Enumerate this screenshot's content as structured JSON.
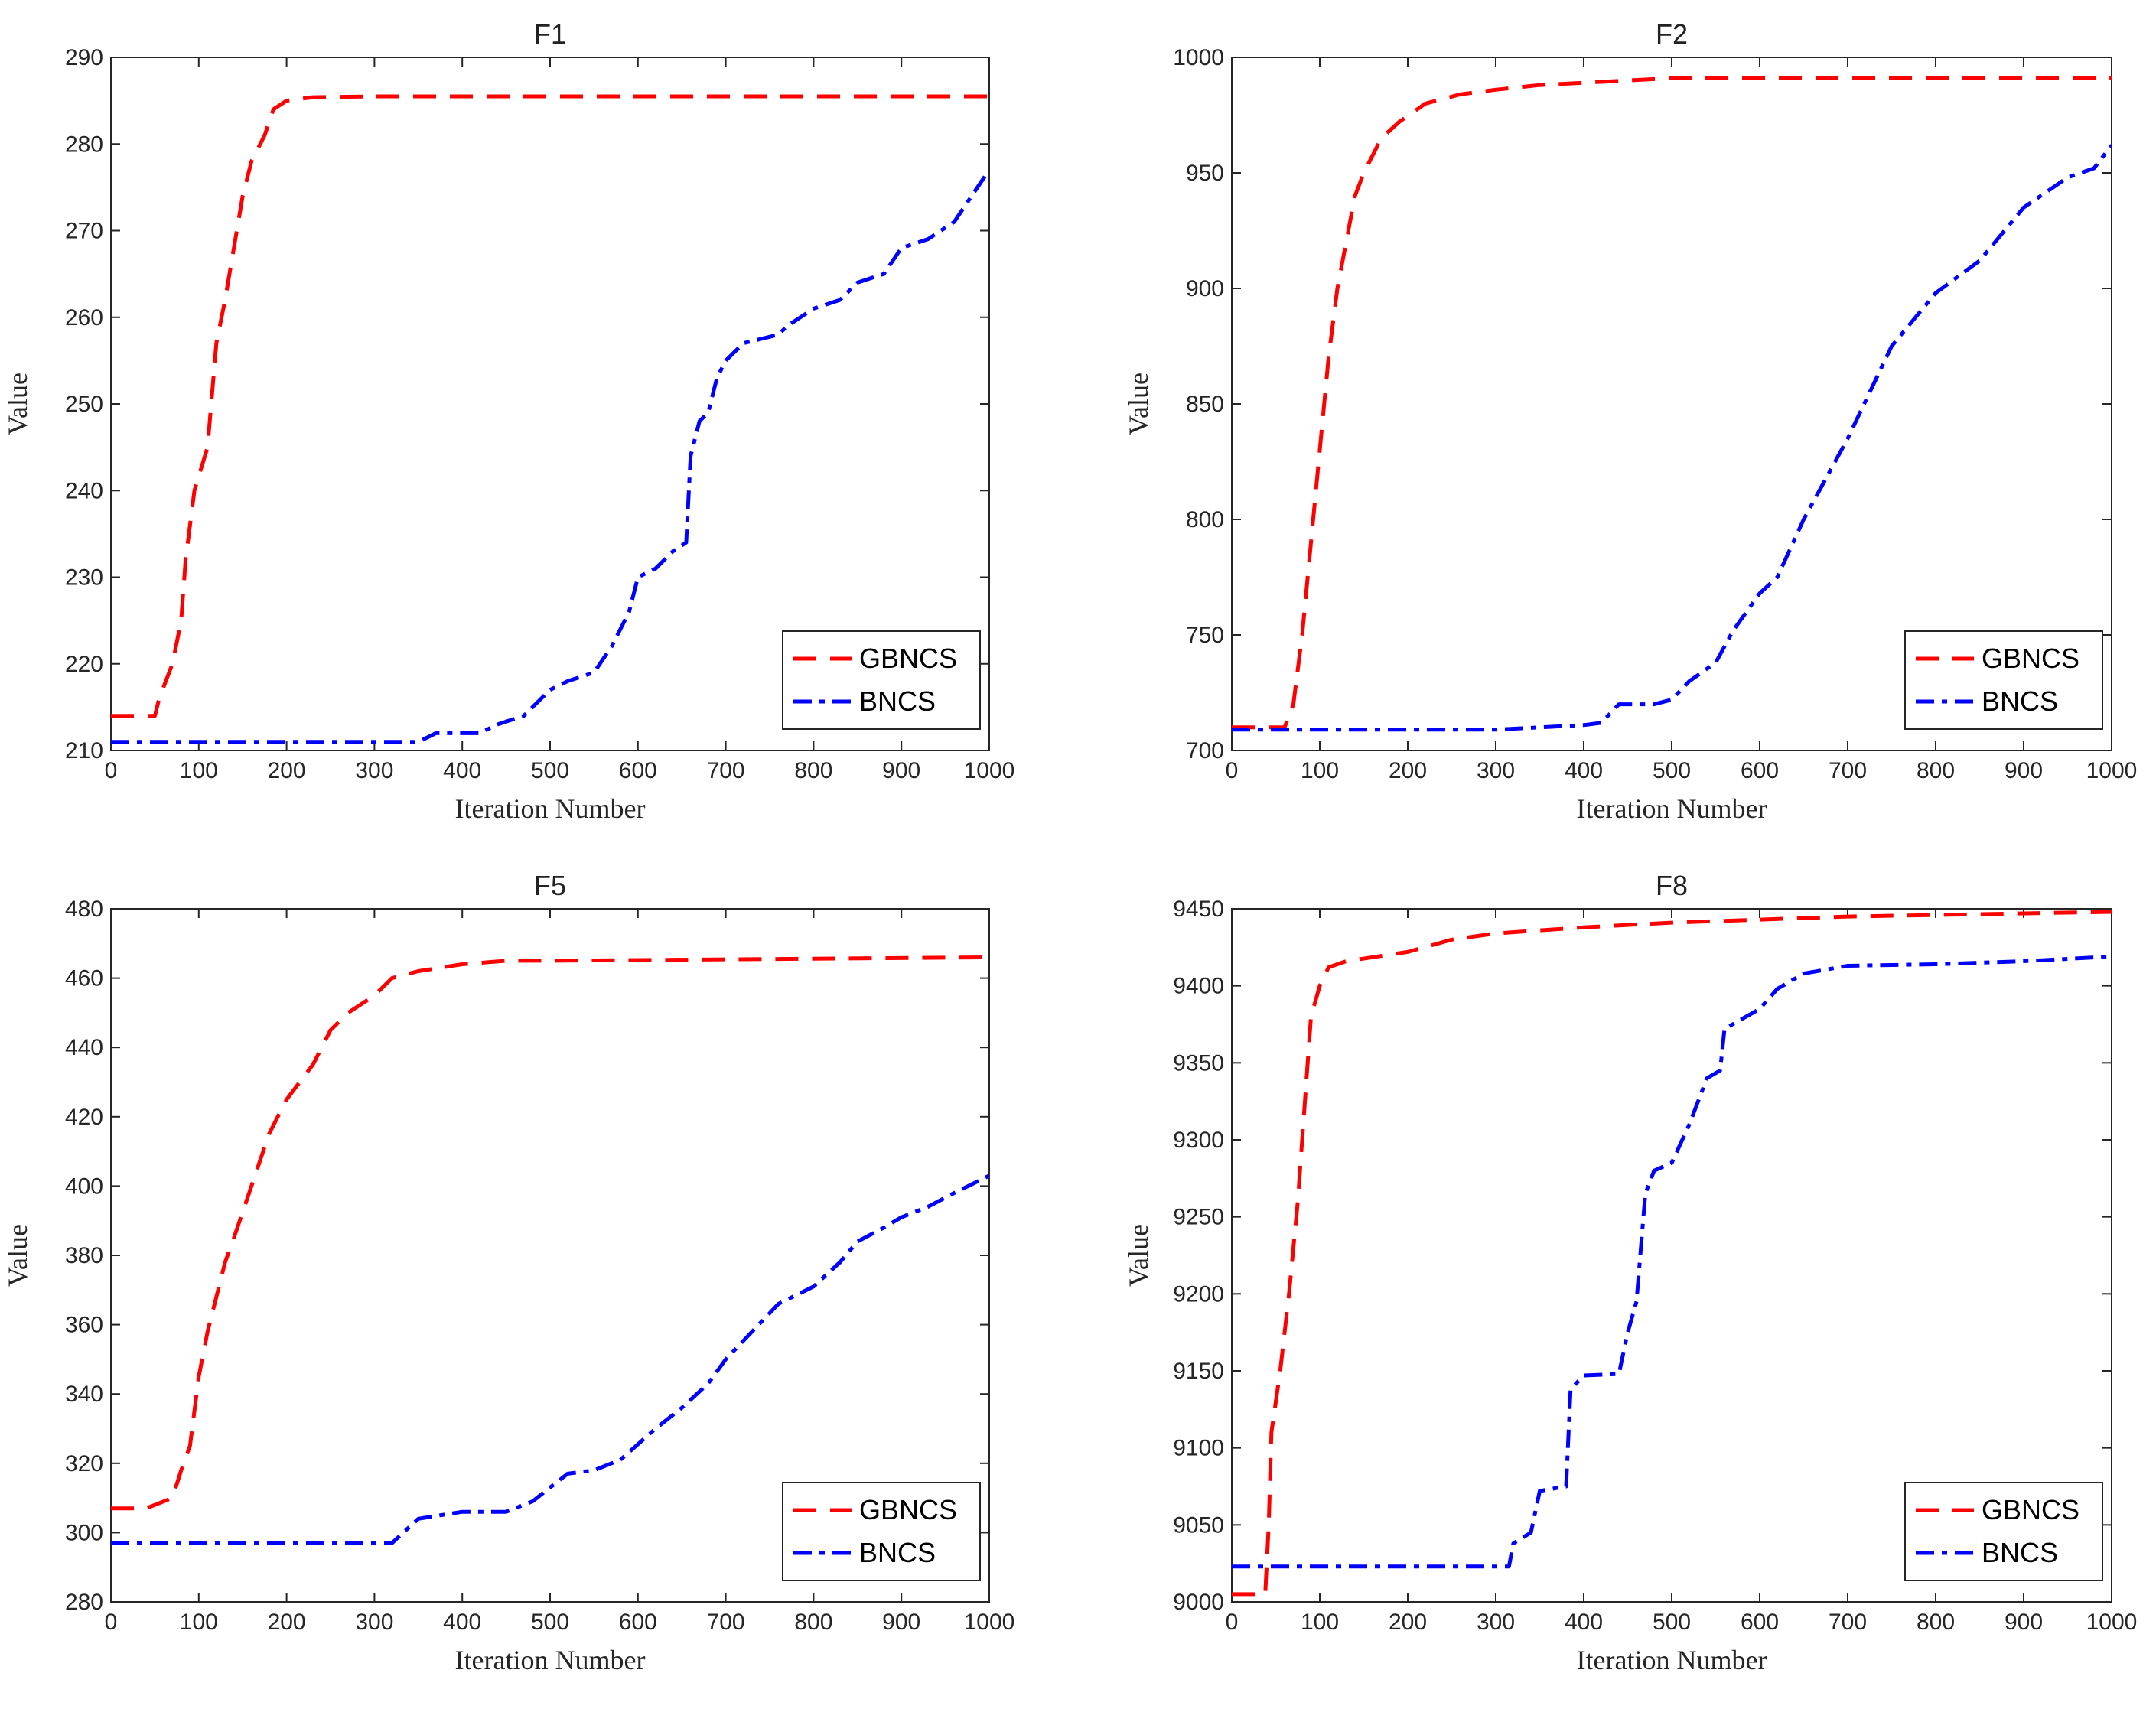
{
  "chart_data": [
    {
      "type": "line",
      "title": "F1",
      "xlabel": "Iteration Number",
      "ylabel": "Value",
      "xlim": [
        0,
        1000
      ],
      "ylim": [
        210,
        290
      ],
      "xticks": [
        0,
        100,
        200,
        300,
        400,
        500,
        600,
        700,
        800,
        900,
        1000
      ],
      "yticks": [
        210,
        220,
        230,
        240,
        250,
        260,
        270,
        280,
        290
      ],
      "legend": "bottom-right",
      "series": [
        {
          "name": "GBNCS",
          "color": "#ff0000",
          "style": "dashed",
          "x": [
            0,
            50,
            55,
            70,
            80,
            85,
            95,
            110,
            120,
            130,
            140,
            150,
            160,
            175,
            185,
            200,
            230,
            300,
            1000
          ],
          "y": [
            214,
            214,
            216,
            220,
            225,
            232,
            240,
            245,
            257,
            262,
            268,
            274,
            278,
            281,
            284,
            285,
            285.4,
            285.5,
            285.5
          ]
        },
        {
          "name": "BNCS",
          "color": "#0000ff",
          "style": "dashdot",
          "x": [
            0,
            350,
            370,
            420,
            440,
            470,
            490,
            500,
            520,
            550,
            570,
            590,
            600,
            620,
            640,
            655,
            660,
            670,
            680,
            690,
            700,
            720,
            760,
            770,
            800,
            830,
            850,
            880,
            900,
            930,
            960,
            980,
            1000
          ],
          "y": [
            211,
            211,
            212,
            212,
            213,
            214,
            216,
            217,
            218,
            219,
            222,
            226,
            230,
            231,
            233,
            234,
            244,
            248,
            249,
            253,
            255,
            257,
            258,
            259,
            261,
            262,
            264,
            265,
            268,
            269,
            271,
            274,
            277
          ]
        }
      ]
    },
    {
      "type": "line",
      "title": "F2",
      "xlabel": "Iteration Number",
      "ylabel": "Value",
      "xlim": [
        0,
        1000
      ],
      "ylim": [
        700,
        1000
      ],
      "xticks": [
        0,
        100,
        200,
        300,
        400,
        500,
        600,
        700,
        800,
        900,
        1000
      ],
      "yticks": [
        700,
        750,
        800,
        850,
        900,
        950,
        1000
      ],
      "legend": "bottom-right",
      "series": [
        {
          "name": "GBNCS",
          "color": "#ff0000",
          "style": "dashed",
          "x": [
            0,
            60,
            70,
            80,
            90,
            100,
            110,
            120,
            130,
            140,
            150,
            170,
            190,
            220,
            260,
            300,
            350,
            400,
            450,
            500,
            1000
          ],
          "y": [
            710,
            710,
            720,
            750,
            790,
            830,
            870,
            900,
            920,
            940,
            950,
            965,
            972,
            980,
            984,
            986,
            988,
            989,
            990,
            991,
            991
          ]
        },
        {
          "name": "BNCS",
          "color": "#0000ff",
          "style": "dashdot",
          "x": [
            0,
            300,
            400,
            420,
            440,
            480,
            500,
            520,
            550,
            570,
            600,
            620,
            650,
            700,
            750,
            800,
            850,
            900,
            950,
            980,
            1000
          ],
          "y": [
            709,
            709,
            711,
            712,
            720,
            720,
            722,
            730,
            738,
            752,
            768,
            775,
            800,
            835,
            875,
            898,
            912,
            935,
            948,
            952,
            962
          ]
        }
      ]
    },
    {
      "type": "line",
      "title": "F5",
      "xlabel": "Iteration Number",
      "ylabel": "Value",
      "xlim": [
        0,
        1000
      ],
      "ylim": [
        280,
        480
      ],
      "xticks": [
        0,
        100,
        200,
        300,
        400,
        500,
        600,
        700,
        800,
        900,
        1000
      ],
      "yticks": [
        280,
        300,
        320,
        340,
        360,
        380,
        400,
        420,
        440,
        460,
        480
      ],
      "legend": "bottom-right",
      "series": [
        {
          "name": "GBNCS",
          "color": "#ff0000",
          "style": "dashed",
          "x": [
            0,
            40,
            70,
            80,
            90,
            100,
            110,
            120,
            130,
            140,
            160,
            180,
            200,
            230,
            250,
            270,
            300,
            320,
            350,
            400,
            450,
            500,
            1000
          ],
          "y": [
            307,
            307,
            310,
            318,
            325,
            345,
            358,
            368,
            378,
            385,
            400,
            415,
            425,
            435,
            445,
            450,
            455,
            460,
            462,
            464,
            465,
            465,
            466
          ]
        },
        {
          "name": "BNCS",
          "color": "#0000ff",
          "style": "dashdot",
          "x": [
            0,
            200,
            320,
            350,
            400,
            450,
            480,
            500,
            520,
            550,
            580,
            620,
            650,
            680,
            700,
            730,
            760,
            800,
            830,
            850,
            880,
            900,
            930,
            960,
            1000
          ],
          "y": [
            297,
            297,
            297,
            304,
            306,
            306,
            309,
            313,
            317,
            318,
            321,
            330,
            336,
            343,
            350,
            358,
            366,
            371,
            378,
            384,
            388,
            391,
            394,
            398,
            403
          ]
        }
      ]
    },
    {
      "type": "line",
      "title": "F8",
      "xlabel": "Iteration Number",
      "ylabel": "Value",
      "xlim": [
        0,
        1000
      ],
      "ylim": [
        9000,
        9450
      ],
      "xticks": [
        0,
        100,
        200,
        300,
        400,
        500,
        600,
        700,
        800,
        900,
        1000
      ],
      "yticks": [
        9000,
        9050,
        9100,
        9150,
        9200,
        9250,
        9300,
        9350,
        9400,
        9450
      ],
      "legend": "bottom-right",
      "series": [
        {
          "name": "GBNCS",
          "color": "#ff0000",
          "style": "dashed",
          "x": [
            0,
            38,
            42,
            45,
            55,
            65,
            75,
            80,
            90,
            100,
            110,
            130,
            200,
            250,
            300,
            400,
            500,
            600,
            700,
            800,
            900,
            1000
          ],
          "y": [
            9005,
            9005,
            9050,
            9110,
            9150,
            9200,
            9260,
            9300,
            9380,
            9400,
            9412,
            9416,
            9422,
            9430,
            9434,
            9438,
            9441,
            9443,
            9445,
            9446,
            9447,
            9448
          ]
        },
        {
          "name": "BNCS",
          "color": "#0000ff",
          "style": "dashdot",
          "x": [
            0,
            300,
            315,
            320,
            340,
            350,
            380,
            385,
            400,
            440,
            450,
            460,
            470,
            480,
            500,
            520,
            540,
            555,
            560,
            600,
            620,
            650,
            700,
            800,
            900,
            1000
          ],
          "y": [
            9023,
            9023,
            9023,
            9038,
            9045,
            9072,
            9075,
            9138,
            9147,
            9148,
            9175,
            9195,
            9265,
            9280,
            9285,
            9310,
            9340,
            9345,
            9372,
            9385,
            9398,
            9408,
            9413,
            9414,
            9416,
            9419
          ]
        }
      ]
    }
  ]
}
